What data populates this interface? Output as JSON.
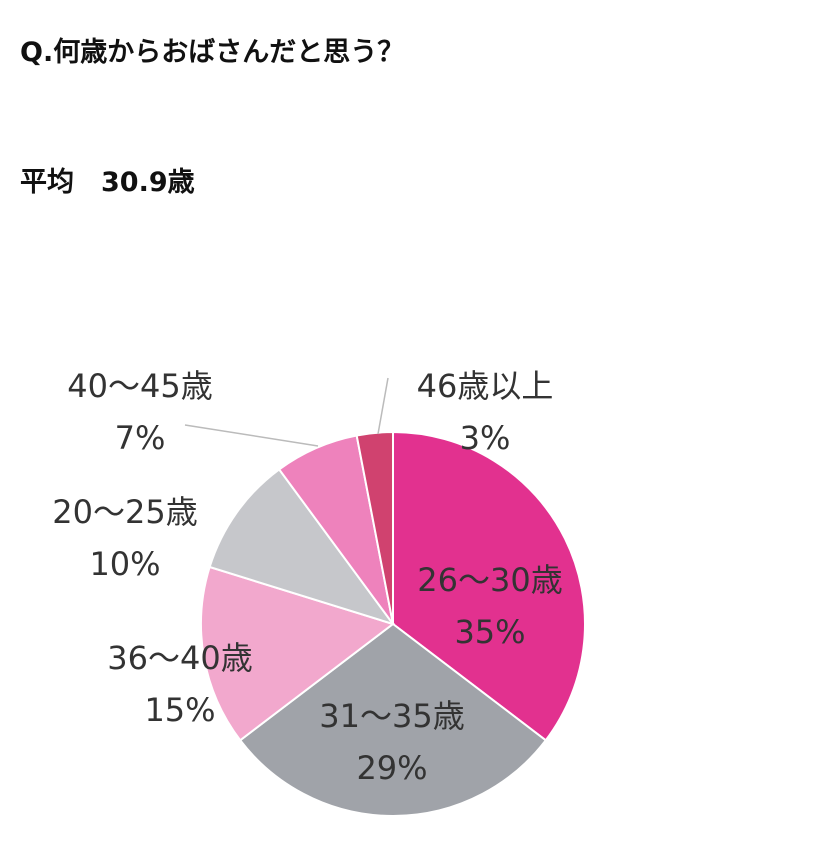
{
  "chart_data": {
    "type": "pie",
    "title": "Q.何歳からおばさんだと思う？",
    "subtitle": "平均　30.9歳",
    "categories": [
      "26～30歳",
      "31～35歳",
      "36～40歳",
      "20～25歳",
      "40～45歳",
      "46歳以上"
    ],
    "values": [
      35,
      29,
      15,
      10,
      7,
      3
    ],
    "value_labels": [
      "35%",
      "29%",
      "15%",
      "10%",
      "7%",
      "3%"
    ],
    "colors": [
      "#e2318f",
      "#a0a3a9",
      "#f2a8cd",
      "#c6c7cb",
      "#ee82bc",
      "#d0426f"
    ]
  }
}
